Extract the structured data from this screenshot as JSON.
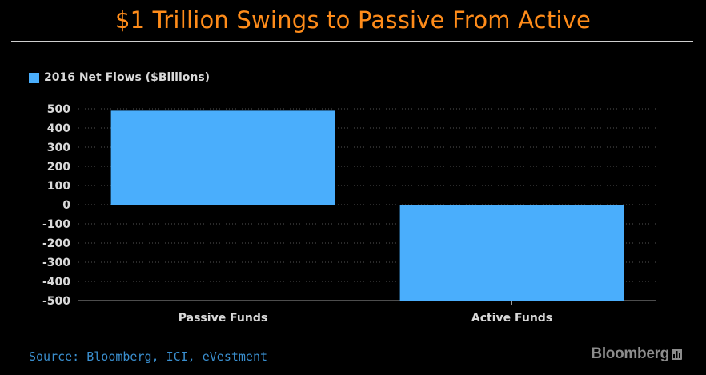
{
  "title": "$1 Trillion Swings to Passive From Active",
  "source": "Source: Bloomberg, ICI, eVestment",
  "brand": "Bloomberg",
  "brand_icon": "bar-chart-icon",
  "colors": {
    "background": "#000000",
    "title": "#ff8c1a",
    "bar": "#4aaefc",
    "axis_text": "#d9d9d9",
    "grid": "#555555",
    "source": "#3a8fcf",
    "brand": "#8c8c8c"
  },
  "chart_data": {
    "type": "bar",
    "categories": [
      "Passive Funds",
      "Active Funds"
    ],
    "series": [
      {
        "name": "2016 Net Flows ($Billions)",
        "values": [
          490,
          -500
        ]
      }
    ],
    "ylim": [
      -500,
      500
    ],
    "yticks": [
      500,
      400,
      300,
      200,
      100,
      0,
      -100,
      -200,
      -300,
      -400,
      -500
    ],
    "grid": true,
    "legend": "top-left",
    "xlabel": "",
    "ylabel": ""
  }
}
